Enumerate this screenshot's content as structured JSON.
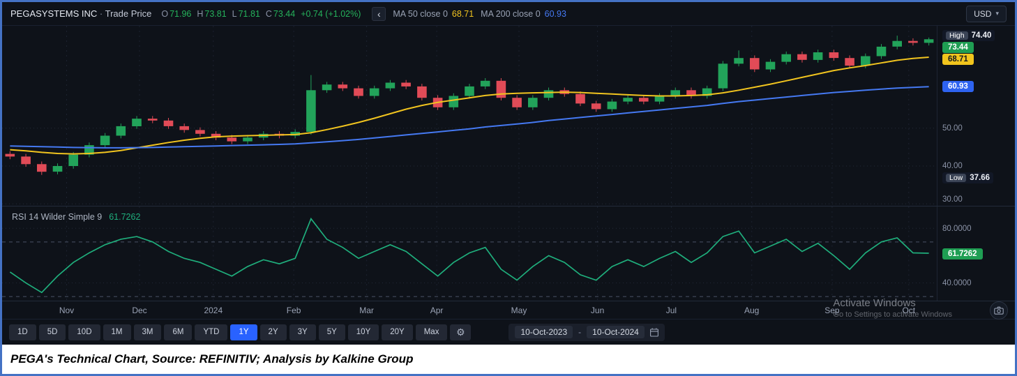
{
  "header": {
    "symbol": "PEGASYSTEMS INC",
    "separator": "·",
    "series_label": "Trade Price",
    "ohlc": [
      {
        "k": "O",
        "v": "71.96"
      },
      {
        "k": "H",
        "v": "73.81"
      },
      {
        "k": "L",
        "v": "71.81"
      },
      {
        "k": "C",
        "v": "73.44"
      }
    ],
    "change": "+0.74 (+1.02%)",
    "back_chevron": "‹",
    "ma50": {
      "label": "MA 50 close 0",
      "value": "68.71"
    },
    "ma200": {
      "label": "MA 200 close 0",
      "value": "60.93"
    },
    "currency_button": {
      "label": "USD",
      "caret": "▾"
    }
  },
  "price_axis": {
    "items": [
      {
        "type": "pair",
        "chip": "High",
        "value": "74.40",
        "level": 74.4,
        "name": "high-price-label"
      },
      {
        "type": "badge",
        "value": "73.44",
        "level": 73.44,
        "bg": "#1f9e53",
        "fg": "#ffffff",
        "name": "last-price-badge"
      },
      {
        "type": "badge",
        "value": "68.71",
        "level": 68.71,
        "bg": "#f2c51d",
        "fg": "#15191f",
        "name": "ma50-price-badge"
      },
      {
        "type": "badge",
        "value": "60.93",
        "level": 60.93,
        "bg": "#2e63f0",
        "fg": "#ffffff",
        "name": "ma200-price-badge"
      },
      {
        "type": "tick",
        "value": "50.00",
        "level": 50,
        "name": "price-tick-50"
      },
      {
        "type": "tick",
        "value": "40.00",
        "level": 40,
        "name": "price-tick-40"
      },
      {
        "type": "pair",
        "chip": "Low",
        "value": "37.66",
        "level": 37.66,
        "name": "low-price-label"
      },
      {
        "type": "tick",
        "value": "30.00",
        "level": 30,
        "name": "price-tick-30"
      }
    ]
  },
  "rsi": {
    "title": "RSI 14 Wilder Simple 9",
    "value": "61.7262"
  },
  "rsi_axis": {
    "items": [
      {
        "type": "tick",
        "value": "80.0000",
        "level": 80,
        "name": "rsi-tick-80"
      },
      {
        "type": "badge",
        "value": "61.7262",
        "level": 61.7262,
        "bg": "#1f9e53",
        "fg": "#ffffff",
        "name": "rsi-value-badge"
      },
      {
        "type": "tick",
        "value": "40.0000",
        "level": 40,
        "name": "rsi-tick-40"
      }
    ]
  },
  "toolbar": {
    "ranges": [
      "1D",
      "5D",
      "10D",
      "1M",
      "3M",
      "6M",
      "YTD",
      "1Y",
      "2Y",
      "3Y",
      "5Y",
      "10Y",
      "20Y",
      "Max"
    ],
    "active": "1Y",
    "gear_icon": "⚙",
    "date_from": "10-Oct-2023",
    "date_separator": "-",
    "date_to": "10-Oct-2024"
  },
  "watermark": {
    "line1": "Activate Windows",
    "line2": "Go to Settings to activate Windows"
  },
  "caption": "PEGA's Technical Chart, Source: REFINITIV; Analysis by Kalkine Group",
  "colors": {
    "up": "#22a35a",
    "down": "#e14b57",
    "ma50": "#f1c41f",
    "ma200": "#4579f2",
    "rsi": "#1fae7c",
    "accent": "#2962ff",
    "ohlc_green": "#25b25b",
    "frame_border": "#4472c4"
  },
  "chart_data": [
    {
      "type": "candlestick",
      "title": "PEGASYSTEMS INC · Trade Price",
      "currency": "USD",
      "ylim": [
        29.5,
        77
      ],
      "high": 74.4,
      "low": 37.66,
      "last": 73.44,
      "y_gridlines": [
        50,
        40,
        30
      ],
      "x_ticks": [
        {
          "label": "Nov",
          "pos": 0.069
        },
        {
          "label": "Dec",
          "pos": 0.147
        },
        {
          "label": "2024",
          "pos": 0.226
        },
        {
          "label": "Feb",
          "pos": 0.312
        },
        {
          "label": "Mar",
          "pos": 0.39
        },
        {
          "label": "Apr",
          "pos": 0.465
        },
        {
          "label": "May",
          "pos": 0.553
        },
        {
          "label": "Jun",
          "pos": 0.637
        },
        {
          "label": "Jul",
          "pos": 0.716
        },
        {
          "label": "Aug",
          "pos": 0.802
        },
        {
          "label": "Sep",
          "pos": 0.888
        },
        {
          "label": "Oct",
          "pos": 0.97
        }
      ],
      "candles": [
        [
          43.2,
          43.9,
          41.8,
          42.5
        ],
        [
          42.5,
          43.2,
          39.8,
          40.5
        ],
        [
          40.5,
          41.2,
          37.66,
          38.5
        ],
        [
          38.5,
          40.7,
          37.8,
          40.0
        ],
        [
          40.0,
          43.7,
          39.3,
          43.0
        ],
        [
          43.0,
          46.2,
          42.3,
          45.5
        ],
        [
          45.5,
          48.7,
          44.8,
          48.0
        ],
        [
          48.0,
          51.2,
          47.3,
          50.5
        ],
        [
          50.5,
          53.2,
          49.8,
          52.5
        ],
        [
          52.5,
          53.2,
          51.3,
          52.0
        ],
        [
          52.0,
          52.7,
          49.8,
          50.5
        ],
        [
          50.5,
          51.2,
          48.8,
          49.5
        ],
        [
          49.5,
          50.2,
          47.8,
          48.5
        ],
        [
          48.5,
          49.2,
          46.8,
          47.5
        ],
        [
          47.5,
          48.2,
          45.8,
          46.5
        ],
        [
          46.5,
          48.2,
          45.8,
          47.5
        ],
        [
          47.5,
          49.2,
          46.8,
          48.5
        ],
        [
          48.5,
          49.2,
          47.3,
          48.0
        ],
        [
          48.0,
          49.7,
          47.3,
          49.0
        ],
        [
          49.0,
          64.0,
          48.3,
          60.0
        ],
        [
          60.0,
          62.2,
          59.3,
          61.5
        ],
        [
          61.5,
          62.2,
          59.8,
          60.5
        ],
        [
          60.5,
          61.2,
          57.8,
          58.5
        ],
        [
          58.5,
          61.2,
          57.8,
          60.5
        ],
        [
          60.5,
          62.7,
          59.8,
          62.0
        ],
        [
          62.0,
          62.7,
          60.3,
          61.0
        ],
        [
          61.0,
          61.7,
          57.3,
          58.0
        ],
        [
          58.0,
          58.7,
          54.8,
          55.5
        ],
        [
          55.5,
          59.2,
          54.8,
          58.5
        ],
        [
          58.5,
          61.7,
          57.8,
          61.0
        ],
        [
          61.0,
          63.2,
          60.3,
          62.5
        ],
        [
          62.5,
          63.2,
          57.3,
          58.0
        ],
        [
          58.0,
          58.7,
          54.8,
          55.5
        ],
        [
          55.5,
          58.7,
          54.8,
          58.0
        ],
        [
          58.0,
          60.7,
          57.3,
          60.0
        ],
        [
          60.0,
          60.7,
          58.3,
          59.0
        ],
        [
          59.0,
          59.7,
          55.8,
          56.5
        ],
        [
          56.5,
          57.2,
          54.3,
          55.0
        ],
        [
          55.0,
          57.7,
          54.3,
          57.0
        ],
        [
          57.0,
          58.7,
          56.3,
          58.0
        ],
        [
          58.0,
          58.7,
          56.3,
          57.0
        ],
        [
          57.0,
          59.2,
          56.3,
          58.5
        ],
        [
          58.5,
          60.7,
          57.8,
          60.0
        ],
        [
          60.0,
          60.7,
          57.8,
          58.5
        ],
        [
          58.5,
          61.2,
          57.8,
          60.5
        ],
        [
          60.5,
          67.7,
          59.8,
          67.0
        ],
        [
          67.0,
          70.5,
          66.3,
          68.5
        ],
        [
          68.5,
          69.2,
          64.8,
          65.5
        ],
        [
          65.5,
          68.2,
          64.8,
          67.5
        ],
        [
          67.5,
          70.2,
          66.8,
          69.5
        ],
        [
          69.5,
          70.2,
          67.3,
          68.0
        ],
        [
          68.0,
          70.7,
          67.3,
          70.0
        ],
        [
          70.0,
          70.7,
          67.8,
          68.5
        ],
        [
          68.5,
          69.2,
          65.8,
          66.5
        ],
        [
          66.5,
          69.7,
          65.8,
          69.0
        ],
        [
          69.0,
          72.2,
          68.3,
          71.5
        ],
        [
          71.5,
          74.4,
          70.8,
          73.0
        ],
        [
          73.0,
          73.7,
          71.8,
          72.5
        ],
        [
          72.5,
          73.9,
          71.81,
          73.44
        ]
      ],
      "overlays": [
        {
          "name": "MA 50",
          "color": "#f1c41f",
          "last": 68.71,
          "values": [
            44.3,
            44.0,
            43.6,
            43.3,
            43.2,
            43.3,
            43.6,
            44.1,
            44.8,
            45.5,
            46.2,
            46.8,
            47.3,
            47.7,
            47.9,
            48.0,
            48.1,
            48.2,
            48.3,
            48.8,
            49.6,
            50.5,
            51.5,
            52.6,
            53.8,
            55.0,
            56.0,
            56.8,
            57.4,
            58.0,
            58.6,
            59.0,
            59.2,
            59.3,
            59.4,
            59.5,
            59.4,
            59.2,
            59.0,
            58.8,
            58.6,
            58.5,
            58.5,
            58.6,
            58.8,
            59.3,
            60.0,
            60.8,
            61.6,
            62.5,
            63.4,
            64.3,
            65.2,
            65.9,
            66.5,
            67.2,
            67.9,
            68.4,
            68.71
          ]
        },
        {
          "name": "MA 200",
          "color": "#4579f2",
          "last": 60.93,
          "values": [
            45.3,
            45.2,
            45.1,
            45.0,
            44.9,
            44.85,
            44.8,
            44.8,
            44.85,
            44.9,
            45.0,
            45.1,
            45.2,
            45.3,
            45.4,
            45.5,
            45.6,
            45.7,
            45.85,
            46.1,
            46.4,
            46.7,
            47.0,
            47.4,
            47.8,
            48.2,
            48.6,
            49.0,
            49.4,
            49.8,
            50.3,
            50.7,
            51.1,
            51.5,
            52.0,
            52.4,
            52.8,
            53.2,
            53.6,
            54.0,
            54.4,
            54.8,
            55.2,
            55.6,
            56.0,
            56.5,
            57.0,
            57.4,
            57.8,
            58.2,
            58.6,
            59.0,
            59.4,
            59.7,
            60.0,
            60.3,
            60.55,
            60.75,
            60.93
          ]
        }
      ]
    },
    {
      "type": "line",
      "title": "RSI 14 Wilder Simple 9",
      "ylim": [
        27,
        96
      ],
      "y_gridlines": [
        80,
        40
      ],
      "bands": [
        70,
        30
      ],
      "last": 61.7262,
      "values": [
        48,
        40,
        33,
        45,
        55,
        62,
        68,
        72,
        74,
        70,
        63,
        58,
        55,
        50,
        45,
        52,
        57,
        54,
        58,
        87,
        72,
        66,
        58,
        63,
        68,
        63,
        54,
        45,
        55,
        62,
        66,
        50,
        42,
        52,
        60,
        55,
        46,
        42,
        52,
        57,
        52,
        58,
        63,
        55,
        62,
        74,
        78,
        62,
        67,
        72,
        63,
        69,
        60,
        50,
        62,
        70,
        73,
        62,
        61.73
      ]
    }
  ]
}
